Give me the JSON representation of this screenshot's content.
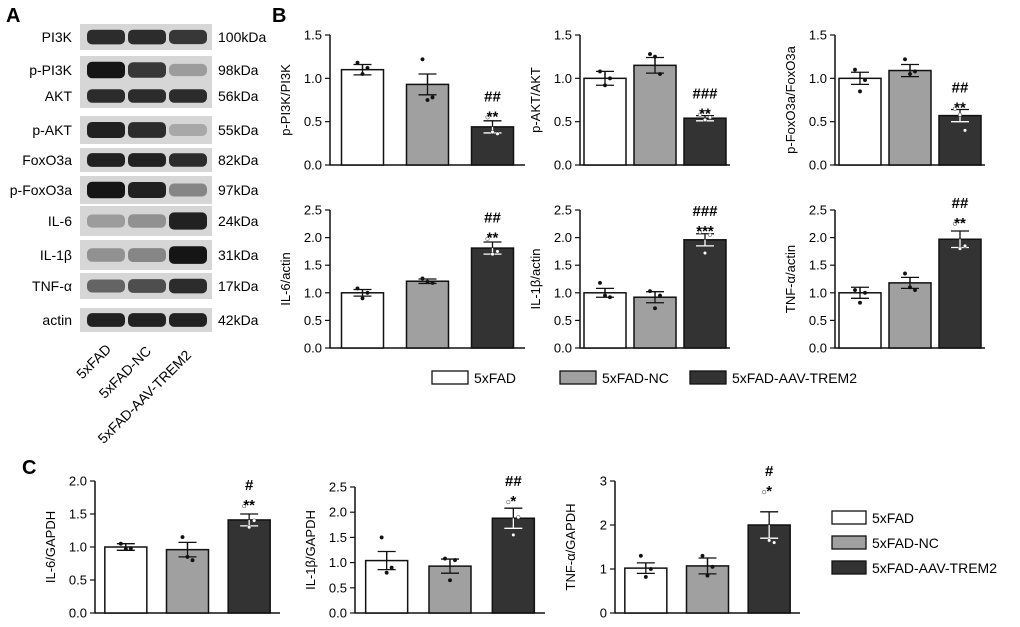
{
  "panels": {
    "A": "A",
    "B": "B",
    "C": "C"
  },
  "colors": {
    "5xFAD": "#ffffff",
    "5xFAD-NC": "#a0a0a0",
    "5xFAD-AAV-TREM2": "#333333",
    "axis": "#111111"
  },
  "blot": {
    "rows": [
      {
        "protein": "PI3K",
        "kda": "100kDa",
        "intensity": [
          0.85,
          0.85,
          0.8
        ]
      },
      {
        "protein": "p-PI3K",
        "kda": "98kDa",
        "intensity": [
          0.95,
          0.8,
          0.35
        ]
      },
      {
        "protein": "AKT",
        "kda": "56kDa",
        "intensity": [
          0.85,
          0.85,
          0.85
        ]
      },
      {
        "protein": "p-AKT",
        "kda": "55kDa",
        "intensity": [
          0.9,
          0.85,
          0.3
        ]
      },
      {
        "protein": "FoxO3a",
        "kda": "82kDa",
        "intensity": [
          0.9,
          0.9,
          0.85
        ]
      },
      {
        "protein": "p-FoxO3a",
        "kda": "97kDa",
        "intensity": [
          0.95,
          0.9,
          0.45
        ]
      },
      {
        "protein": "IL-6",
        "kda": "24kDa",
        "intensity": [
          0.35,
          0.4,
          0.9
        ]
      },
      {
        "protein": "IL-1β",
        "kda": "31kDa",
        "intensity": [
          0.4,
          0.45,
          0.95
        ]
      },
      {
        "protein": "TNF-α",
        "kda": "17kDa",
        "intensity": [
          0.6,
          0.7,
          0.85
        ]
      },
      {
        "protein": "actin",
        "kda": "42kDa",
        "intensity": [
          0.9,
          0.9,
          0.9
        ]
      }
    ],
    "lanes": [
      "5xFAD",
      "5xFAD-NC",
      "5xFAD-AAV-TREM2"
    ]
  },
  "legend": [
    "5xFAD",
    "5xFAD-NC",
    "5xFAD-AAV-TREM2"
  ],
  "chart_data": [
    {
      "id": "B1",
      "type": "bar",
      "ylabel": "p-PI3K/PI3K",
      "ylim": [
        0,
        1.5
      ],
      "ticks": [
        "0.0",
        "0.5",
        "1.0",
        "1.5"
      ],
      "categories": [
        "5xFAD",
        "5xFAD-NC",
        "5xFAD-AAV-TREM2"
      ],
      "values": [
        1.1,
        0.93,
        0.44
      ],
      "errors": [
        0.06,
        0.12,
        0.07
      ],
      "points": [
        [
          1.18,
          1.05,
          1.12
        ],
        [
          1.22,
          0.75,
          0.78
        ],
        [
          0.55,
          0.38,
          0.36
        ]
      ],
      "sig": [
        "",
        "",
        "##\n**"
      ]
    },
    {
      "id": "B2",
      "type": "bar",
      "ylabel": "p-AKT/AKT",
      "ylim": [
        0,
        1.5
      ],
      "ticks": [
        "0.0",
        "0.5",
        "1.0",
        "1.5"
      ],
      "categories": [
        "5xFAD",
        "5xFAD-NC",
        "5xFAD-AAV-TREM2"
      ],
      "values": [
        1.0,
        1.15,
        0.54
      ],
      "errors": [
        0.08,
        0.09,
        0.03
      ],
      "points": [
        [
          1.08,
          0.92,
          1.0
        ],
        [
          1.28,
          1.25,
          1.05
        ],
        [
          0.58,
          0.52,
          0.55
        ]
      ],
      "sig": [
        "",
        "",
        "###\n**"
      ]
    },
    {
      "id": "B3",
      "type": "bar",
      "ylabel": "p-FoxO3a/FoxO3a",
      "ylim": [
        0,
        1.5
      ],
      "ticks": [
        "0.0",
        "0.5",
        "1.0",
        "1.5"
      ],
      "categories": [
        "5xFAD",
        "5xFAD-NC",
        "5xFAD-AAV-TREM2"
      ],
      "values": [
        1.0,
        1.09,
        0.57
      ],
      "errors": [
        0.07,
        0.07,
        0.07
      ],
      "points": [
        [
          1.1,
          0.85,
          0.98
        ],
        [
          1.22,
          1.05,
          1.08
        ],
        [
          0.65,
          0.58,
          0.4
        ]
      ],
      "sig": [
        "",
        "",
        "##\n**"
      ]
    },
    {
      "id": "B4",
      "type": "bar",
      "ylabel": "IL-6/actin",
      "ylim": [
        0,
        2.5
      ],
      "ticks": [
        "0.0",
        "0.5",
        "1.0",
        "1.5",
        "2.0",
        "2.5"
      ],
      "categories": [
        "5xFAD",
        "5xFAD-NC",
        "5xFAD-AAV-TREM2"
      ],
      "values": [
        1.0,
        1.21,
        1.81
      ],
      "errors": [
        0.06,
        0.04,
        0.11
      ],
      "points": [
        [
          1.08,
          0.9,
          1.0
        ],
        [
          1.26,
          1.2,
          1.18
        ],
        [
          1.98,
          1.7,
          1.75
        ]
      ],
      "sig": [
        "",
        "",
        "##\n**"
      ]
    },
    {
      "id": "B5",
      "type": "bar",
      "ylabel": "IL-1β/actin",
      "ylim": [
        0,
        2.5
      ],
      "ticks": [
        "0.0",
        "0.5",
        "1.0",
        "1.5",
        "2.0",
        "2.5"
      ],
      "categories": [
        "5xFAD",
        "5xFAD-NC",
        "5xFAD-AAV-TREM2"
      ],
      "values": [
        1.0,
        0.92,
        1.96
      ],
      "errors": [
        0.08,
        0.1,
        0.11
      ],
      "points": [
        [
          1.18,
          0.95,
          0.92
        ],
        [
          1.03,
          0.72,
          0.95
        ],
        [
          2.1,
          1.72,
          2.05
        ]
      ],
      "sig": [
        "",
        "",
        "###\n***"
      ]
    },
    {
      "id": "B6",
      "type": "bar",
      "ylabel": "TNF-α/actin",
      "ylim": [
        0,
        2.5
      ],
      "ticks": [
        "0.0",
        "0.5",
        "1.0",
        "1.5",
        "2.0",
        "2.5"
      ],
      "categories": [
        "5xFAD",
        "5xFAD-NC",
        "5xFAD-AAV-TREM2"
      ],
      "values": [
        1.0,
        1.18,
        1.97
      ],
      "errors": [
        0.1,
        0.1,
        0.15
      ],
      "points": [
        [
          1.05,
          0.82,
          1.0
        ],
        [
          1.35,
          1.1,
          1.05
        ],
        [
          2.25,
          1.8,
          1.85
        ]
      ],
      "sig": [
        "",
        "",
        "##\n**"
      ]
    },
    {
      "id": "C1",
      "type": "bar",
      "ylabel": "IL-6/GAPDH",
      "ylim": [
        0,
        2.0
      ],
      "ticks": [
        "0.0",
        "0.5",
        "1.0",
        "1.5",
        "2.0"
      ],
      "categories": [
        "5xFAD",
        "5xFAD-NC",
        "5xFAD-AAV-TREM2"
      ],
      "values": [
        1.0,
        0.96,
        1.41
      ],
      "errors": [
        0.05,
        0.11,
        0.09
      ],
      "points": [
        [
          1.05,
          0.97,
          0.98
        ],
        [
          1.15,
          0.85,
          0.8
        ],
        [
          1.62,
          1.3,
          1.4
        ]
      ],
      "sig": [
        "",
        "",
        "#\n**"
      ]
    },
    {
      "id": "C2",
      "type": "bar",
      "ylabel": "IL-1β/GAPDH",
      "ylim": [
        0,
        2.5
      ],
      "ticks": [
        "0.0",
        "0.5",
        "1.0",
        "1.5",
        "2.0",
        "2.5"
      ],
      "categories": [
        "5xFAD",
        "5xFAD-NC",
        "5xFAD-AAV-TREM2"
      ],
      "values": [
        1.04,
        0.93,
        1.88
      ],
      "errors": [
        0.18,
        0.14,
        0.2
      ],
      "points": [
        [
          1.5,
          0.8,
          0.9
        ],
        [
          1.08,
          0.65,
          1.05
        ],
        [
          2.2,
          1.55,
          1.9
        ]
      ],
      "sig": [
        "",
        "",
        "##\n*"
      ]
    },
    {
      "id": "C3",
      "type": "bar",
      "ylabel": "TNF-α/GAPDH",
      "ylim": [
        0,
        3
      ],
      "ticks": [
        "0",
        "1",
        "2",
        "3"
      ],
      "categories": [
        "5xFAD",
        "5xFAD-NC",
        "5xFAD-AAV-TREM2"
      ],
      "values": [
        1.02,
        1.07,
        2.0
      ],
      "errors": [
        0.12,
        0.18,
        0.3
      ],
      "points": [
        [
          1.3,
          0.82,
          1.0
        ],
        [
          1.3,
          0.85,
          1.05
        ],
        [
          2.75,
          1.65,
          1.6
        ]
      ],
      "sig": [
        "",
        "",
        "#\n*"
      ]
    }
  ]
}
